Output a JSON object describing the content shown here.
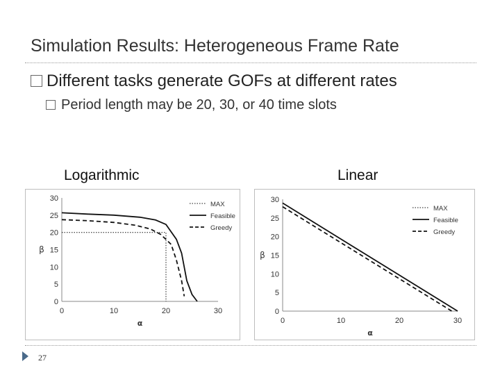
{
  "slide": {
    "title": "Simulation Results: Heterogeneous Frame Rate",
    "bullet_main": "Different tasks generate GOFs at different rates",
    "bullet_sub": "Period length may be 20, 30, or 40 time slots",
    "page_number": "27"
  },
  "charts_labels": {
    "left": "Logarithmic",
    "right": "Linear"
  },
  "chart_data": [
    {
      "type": "line",
      "title": "",
      "xlabel": "α",
      "ylabel": "β",
      "xlim": [
        0,
        30
      ],
      "ylim": [
        0,
        30
      ],
      "xticks": [
        "0",
        "10",
        "20",
        "30"
      ],
      "yticks": [
        "0",
        "5",
        "10",
        "15",
        "20",
        "25",
        "30"
      ],
      "legend_position": "top-right",
      "series": [
        {
          "name": "MAX",
          "style": "dotted",
          "points": [
            [
              0,
              20
            ],
            [
              20,
              20
            ],
            [
              20,
              0
            ]
          ]
        },
        {
          "name": "Feasible",
          "style": "solid",
          "points": [
            [
              0,
              25.7
            ],
            [
              5,
              25.3
            ],
            [
              10,
              25
            ],
            [
              15,
              24.4
            ],
            [
              18,
              23.6
            ],
            [
              20,
              22.3
            ],
            [
              22,
              18
            ],
            [
              23,
              14
            ],
            [
              24,
              6
            ],
            [
              25,
              2
            ],
            [
              26,
              0
            ]
          ]
        },
        {
          "name": "Greedy",
          "style": "dashed",
          "points": [
            [
              0,
              23.7
            ],
            [
              5,
              23.4
            ],
            [
              10,
              22.9
            ],
            [
              14,
              22.1
            ],
            [
              17,
              21
            ],
            [
              19,
              19.4
            ],
            [
              21,
              16.5
            ],
            [
              22,
              12
            ],
            [
              23,
              6
            ],
            [
              23.5,
              1.5
            ]
          ]
        }
      ]
    },
    {
      "type": "line",
      "title": "",
      "xlabel": "α",
      "ylabel": "β",
      "xlim": [
        0,
        30
      ],
      "ylim": [
        0,
        30
      ],
      "xticks": [
        "0",
        "10",
        "20",
        "30"
      ],
      "yticks": [
        "0",
        "5",
        "10",
        "15",
        "20",
        "25",
        "30"
      ],
      "legend_position": "top-right",
      "series": [
        {
          "name": "MAX",
          "style": "dotted",
          "points": []
        },
        {
          "name": "Feasible",
          "style": "solid",
          "points": [
            [
              0,
              29
            ],
            [
              30,
              0
            ]
          ]
        },
        {
          "name": "Greedy",
          "style": "dashed",
          "points": [
            [
              0,
              28
            ],
            [
              29,
              0
            ]
          ]
        }
      ]
    }
  ]
}
